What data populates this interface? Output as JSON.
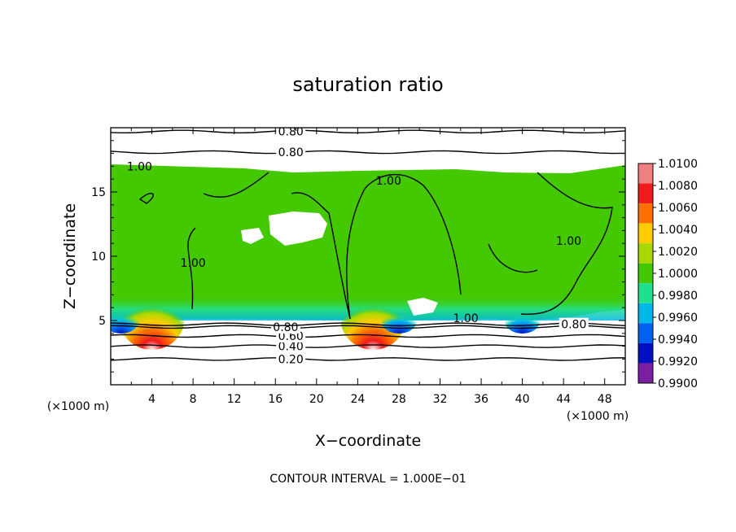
{
  "chart_data": {
    "type": "heatmap",
    "title": "saturation ratio",
    "xlabel": "X−coordinate",
    "ylabel": "Z−coordinate",
    "x_unit_left": "(×1000 m)",
    "x_unit_right": "(×1000 m)",
    "footer": "CONTOUR INTERVAL = 1.000E−01",
    "xlim": [
      0,
      50
    ],
    "ylim": [
      0,
      20
    ],
    "x_ticks": [
      4,
      8,
      12,
      16,
      20,
      24,
      28,
      32,
      36,
      40,
      44,
      48
    ],
    "y_ticks": [
      5,
      10,
      15
    ],
    "colorbar": {
      "levels": [
        "1.0100",
        "1.0080",
        "1.0060",
        "1.0040",
        "1.0020",
        "1.0000",
        "0.9980",
        "0.9960",
        "0.9940",
        "0.9920",
        "0.9900"
      ],
      "colors": [
        "#f08080",
        "#ee1c1c",
        "#ff7000",
        "#ffcc00",
        "#a8d800",
        "#44c800",
        "#20e090",
        "#00b8e8",
        "#0060f0",
        "#0010c0",
        "#7a1fa2"
      ]
    },
    "cloud_top_z": 17,
    "cloud_base_z": 5,
    "hotspots_x": [
      4,
      25.5
    ],
    "cold_spots_x": [
      1,
      28,
      40
    ],
    "contours": [
      {
        "label": "0.20",
        "z": 2.0,
        "label_x": 17.5
      },
      {
        "label": "0.40",
        "z": 3.0,
        "label_x": 17.5
      },
      {
        "label": "0.60",
        "z": 3.8,
        "label_x": 17.5
      },
      {
        "label": "0.80",
        "z": 4.5,
        "label_x": 17.0
      },
      {
        "label": "0.80",
        "z": 4.7,
        "label_x": 45.0
      },
      {
        "label": "0.80",
        "z": 18.1,
        "label_x": 17.5
      },
      {
        "label": "0.80",
        "z": 19.7,
        "label_x": 17.5
      },
      {
        "label": "1.00",
        "z": 17.0,
        "label_x": 2.8
      },
      {
        "label": "1.00",
        "z": 15.9,
        "label_x": 27.0
      },
      {
        "label": "1.00",
        "z": 5.2,
        "label_x": 34.5
      },
      {
        "label": "1.00",
        "z": 9.5,
        "label_x": 8.0
      },
      {
        "label": "1.00",
        "z": 11.2,
        "label_x": 44.5
      }
    ]
  }
}
